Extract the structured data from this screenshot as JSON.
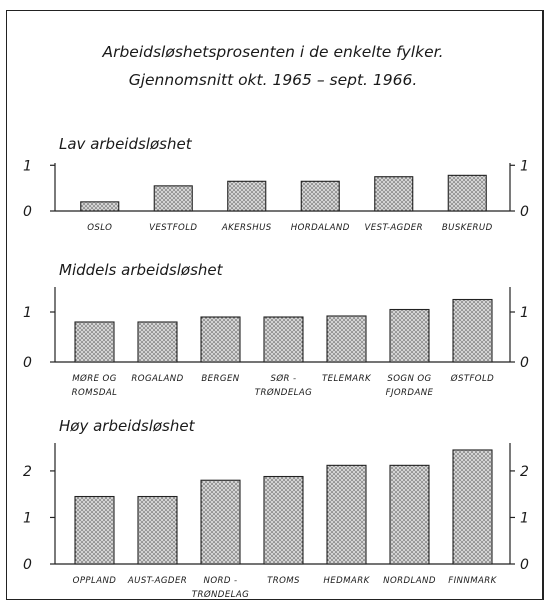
{
  "title": {
    "line1": "Arbeidsløshetsprosenten i de enkelte fylker.",
    "line2": "Gjennomsnitt okt. 1965 – sept. 1966."
  },
  "chart_data": [
    {
      "type": "bar",
      "title": "Lav arbeidsløshet",
      "categories": [
        [
          "OSLO"
        ],
        [
          "VESTFOLD"
        ],
        [
          "AKERSHUS"
        ],
        [
          "HORDALAND"
        ],
        [
          "VEST-AGDER"
        ],
        [
          "BUSKERUD"
        ]
      ],
      "values": [
        0.2,
        0.55,
        0.65,
        0.65,
        0.75,
        0.78
      ],
      "yticks": [
        0,
        1
      ],
      "ylim": [
        0,
        1.05
      ]
    },
    {
      "type": "bar",
      "title": "Middels arbeidsløshet",
      "categories": [
        [
          "MØRE OG",
          "ROMSDAL"
        ],
        [
          "ROGALAND"
        ],
        [
          "BERGEN"
        ],
        [
          "SØR -",
          "TRØNDELAG"
        ],
        [
          "TELEMARK"
        ],
        [
          "SOGN OG",
          "FJORDANE"
        ],
        [
          "ØSTFOLD"
        ]
      ],
      "values": [
        0.8,
        0.8,
        0.9,
        0.9,
        0.92,
        1.05,
        1.25
      ],
      "yticks": [
        0,
        1
      ],
      "ylim": [
        0,
        1.5
      ]
    },
    {
      "type": "bar",
      "title": "Høy arbeidsløshet",
      "categories": [
        [
          "OPPLAND"
        ],
        [
          "AUST-AGDER"
        ],
        [
          "NORD -",
          "TRØNDELAG"
        ],
        [
          "TROMS"
        ],
        [
          "HEDMARK"
        ],
        [
          "NORDLAND"
        ],
        [
          "FINNMARK"
        ]
      ],
      "values": [
        1.45,
        1.45,
        1.8,
        1.88,
        2.12,
        2.12,
        2.45
      ],
      "yticks": [
        0,
        1,
        2
      ],
      "ylim": [
        0,
        2.6
      ]
    }
  ],
  "colors": {
    "ink": "#1a1a1a",
    "bar_fill": "#cfcfcf",
    "stipple": "#4a4a4a"
  }
}
